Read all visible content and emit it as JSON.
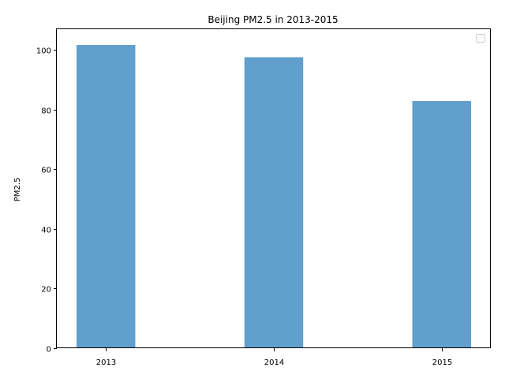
{
  "chart_data": {
    "type": "bar",
    "title": "Beijing PM2.5 in 2013-2015",
    "xlabel": "",
    "ylabel": "PM2.5",
    "categories": [
      "2013",
      "2014",
      "2015"
    ],
    "values": [
      101.7,
      97.6,
      82.9
    ],
    "ylim": [
      0,
      107
    ],
    "yticks": [
      0,
      20,
      40,
      60,
      80,
      100
    ],
    "bar_color": "#619fcd",
    "grid": false,
    "legend": {
      "placement": "top-right",
      "entries": []
    }
  }
}
